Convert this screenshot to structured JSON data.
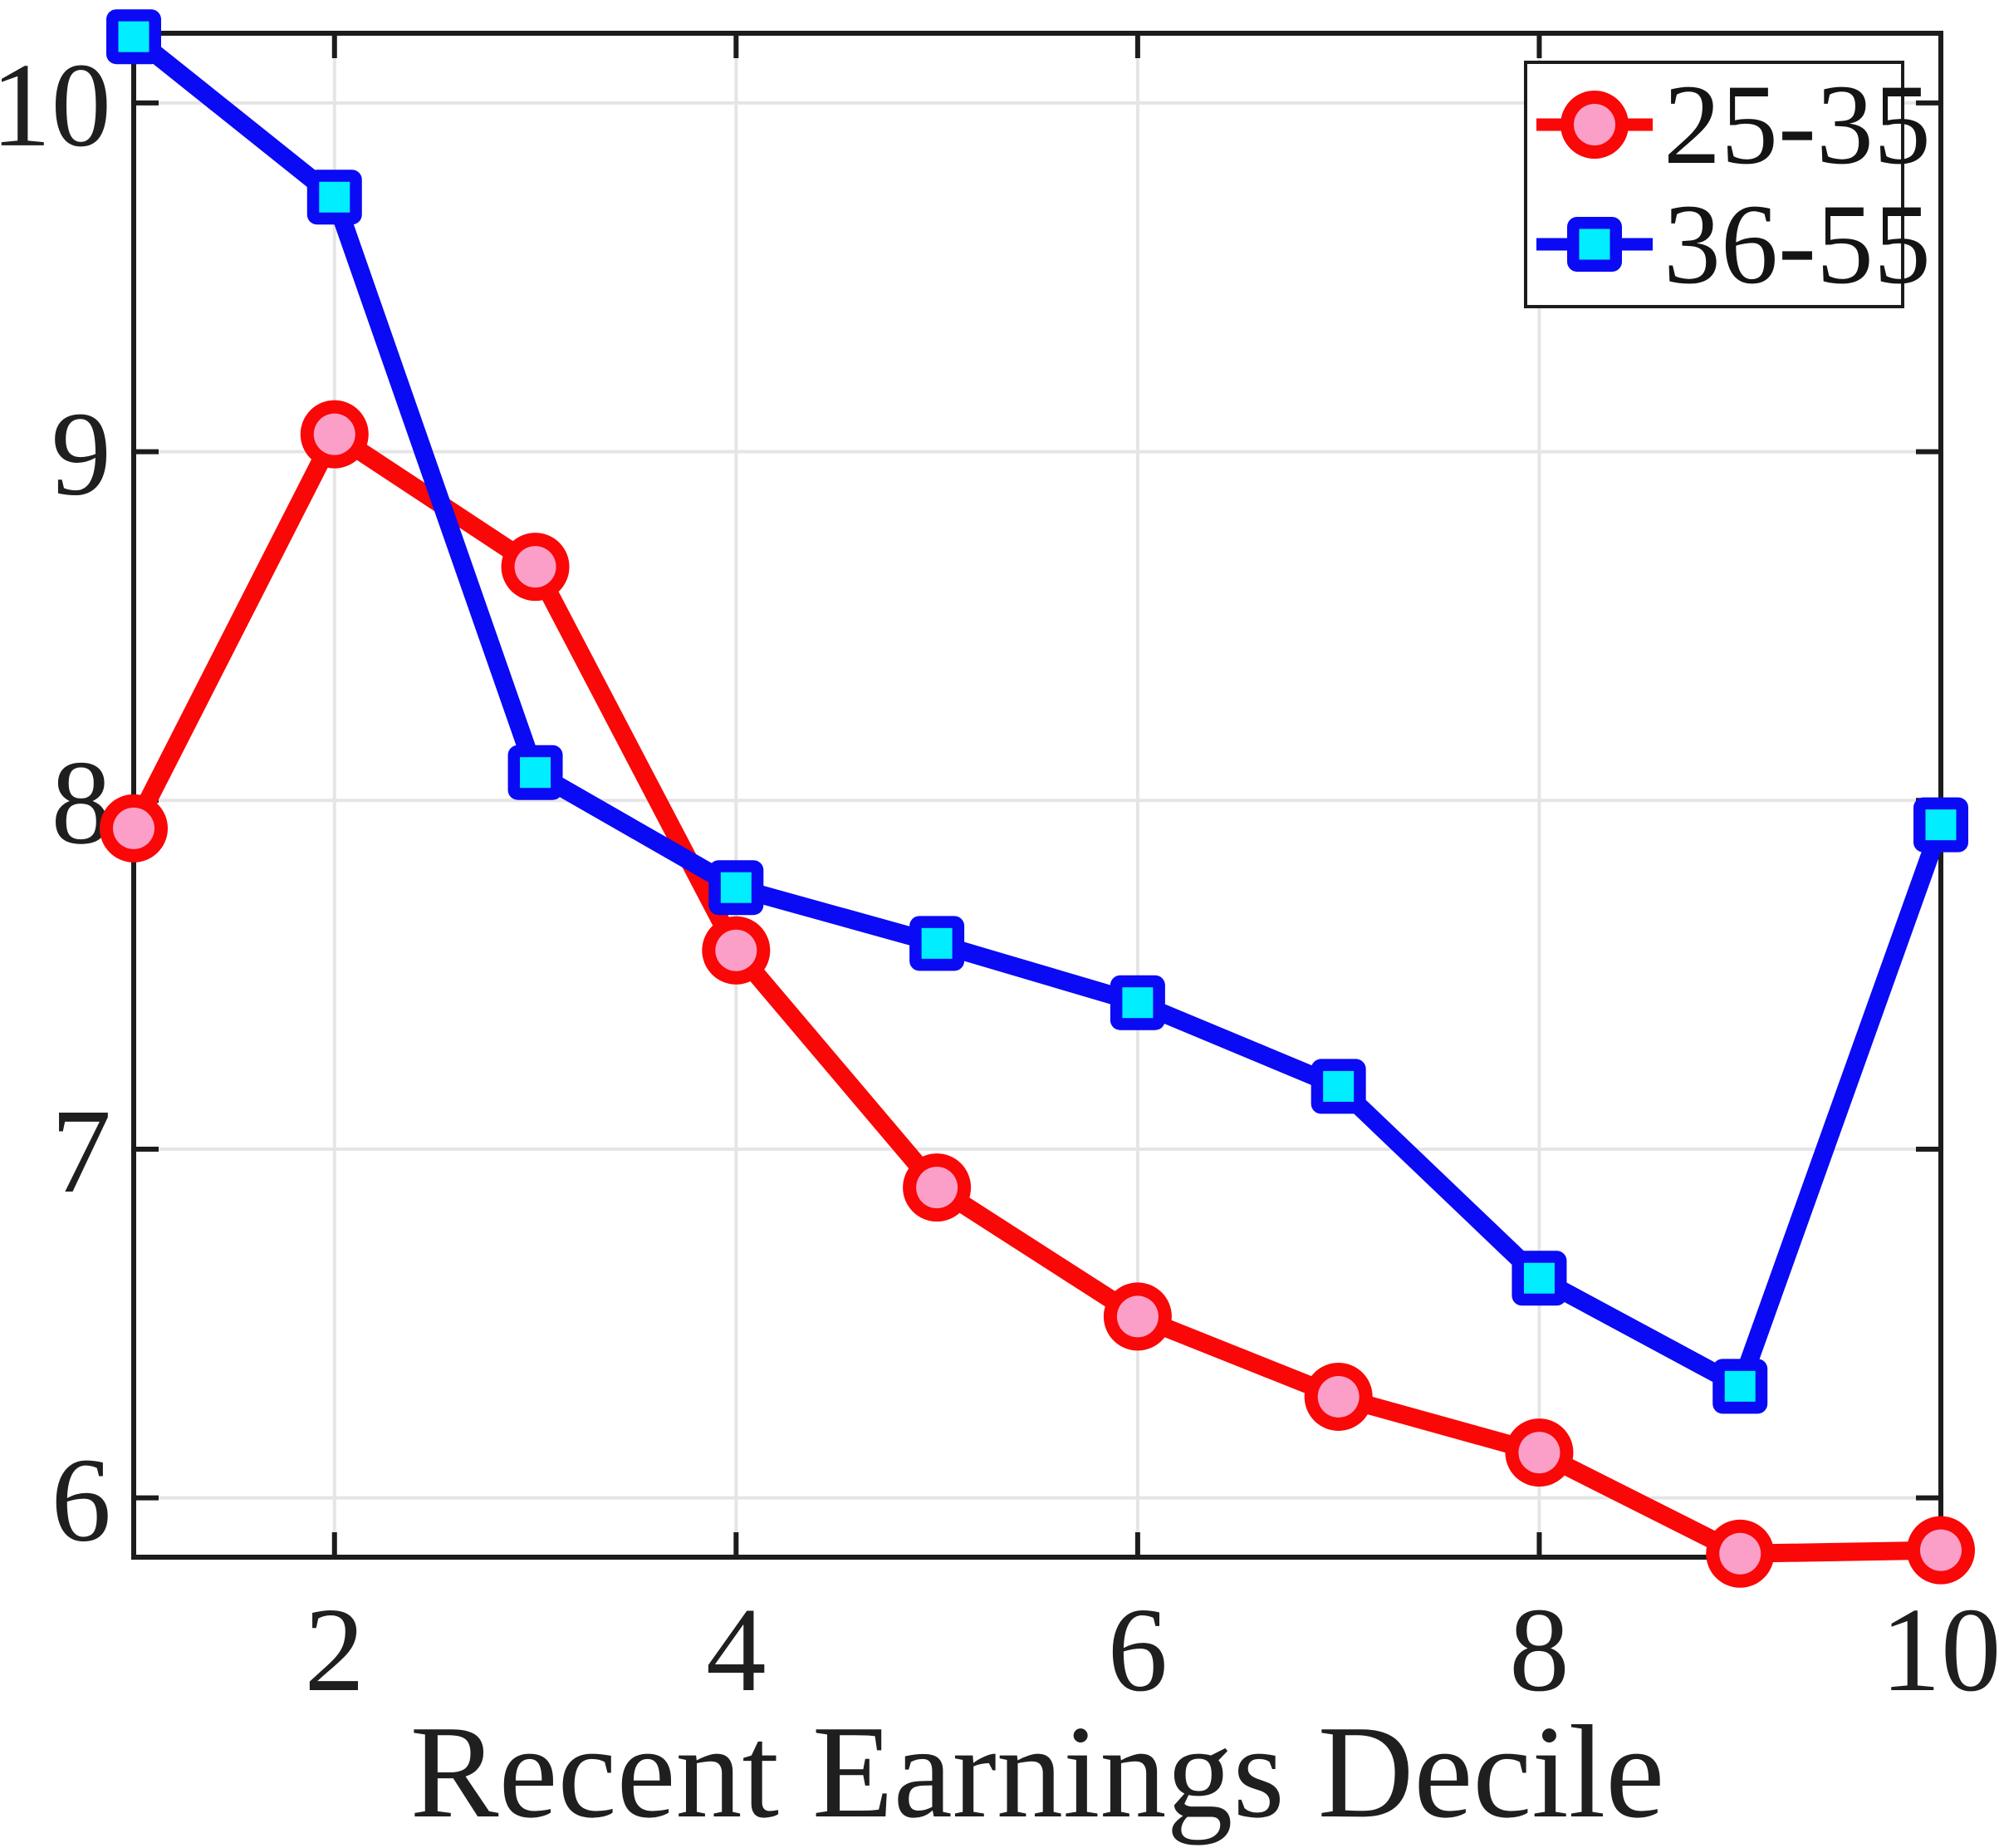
{
  "figure": {
    "background": "#ffffff"
  },
  "chart_data": {
    "type": "line",
    "title": "",
    "xlabel": "Recent Earnings Decile",
    "ylabel": "",
    "x": [
      1,
      2,
      3,
      4,
      5,
      6,
      7,
      8,
      9,
      10
    ],
    "series": [
      {
        "name": "25-35",
        "color": "#fa0707",
        "marker": "circle",
        "marker_face": "#fb9fc8",
        "values": [
          7.92,
          9.05,
          8.67,
          7.57,
          6.89,
          6.52,
          6.29,
          6.13,
          5.84,
          5.85
        ]
      },
      {
        "name": "36-55",
        "color": "#0a0af5",
        "marker": "square",
        "marker_face": "#00eeff",
        "values": [
          10.19,
          9.73,
          8.08,
          7.75,
          7.59,
          7.42,
          7.18,
          6.63,
          6.32,
          7.93
        ]
      }
    ],
    "xlim": [
      1,
      10
    ],
    "ylim": [
      5.83,
      10.2
    ],
    "x_ticks": [
      2,
      4,
      6,
      8,
      10
    ],
    "y_ticks": [
      6,
      7,
      8,
      9,
      10
    ],
    "x_tick_labels": [
      "2",
      "4",
      "6",
      "8",
      "10"
    ],
    "y_tick_labels": [
      "6",
      "7",
      "8",
      "9",
      "10"
    ],
    "grid": true,
    "legend_position": "northeast",
    "colors": {
      "grid": "#e5e5e5",
      "axis": "#1c1c1c",
      "text": "#1f1f1f"
    }
  }
}
